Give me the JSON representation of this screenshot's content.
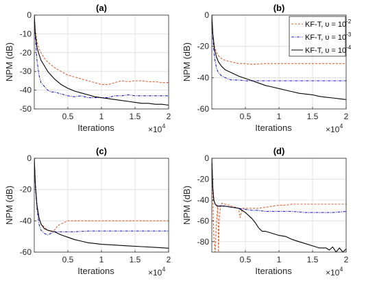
{
  "legend": {
    "entries": [
      {
        "label": "KF-T, υ = 10",
        "exp": "-2"
      },
      {
        "label": "KF-T, υ = 10",
        "exp": "-3"
      },
      {
        "label": "KF-T, υ = 10",
        "exp": "-4"
      }
    ]
  },
  "chart_data": [
    {
      "type": "line",
      "title": "(a)",
      "xlabel": "Iterations",
      "ylabel": "NPM (dB)",
      "x_multiplier": "×10",
      "x_multiplier_exp": "4",
      "xlim": [
        0,
        20000
      ],
      "ylim": [
        -50,
        0
      ],
      "xticks": [
        5000,
        10000,
        15000,
        20000
      ],
      "xtick_labels": [
        "0.5",
        "1",
        "1.5",
        "2"
      ],
      "yticks": [
        -50,
        -40,
        -30,
        -20,
        -10,
        0
      ],
      "ytick_labels": [
        "-50",
        "-40",
        "-30",
        "-20",
        "-10",
        "0"
      ],
      "grid": true,
      "series": [
        {
          "name": "KF-T, υ = 10^-2",
          "color": "#e06030",
          "dash": "3,2",
          "x": [
            0,
            150,
            400,
            700,
            1000,
            1500,
            2000,
            3000,
            4000,
            5000,
            6000,
            7000,
            8000,
            9000,
            10000,
            11000,
            12000,
            13000,
            14000,
            15000,
            16000,
            17000,
            18000,
            19000,
            20000
          ],
          "y": [
            0,
            -8,
            -14,
            -18,
            -20,
            -23,
            -25,
            -28,
            -30,
            -32,
            -33,
            -34,
            -35,
            -36,
            -37,
            -37,
            -36,
            -35,
            -35.5,
            -35,
            -35,
            -35.5,
            -35.5,
            -36,
            -36
          ]
        },
        {
          "name": "KF-T, υ = 10^-3",
          "color": "#2020d0",
          "dash": "4,1.5,1,1.5",
          "x": [
            0,
            150,
            400,
            700,
            1000,
            1500,
            2000,
            2500,
            3000,
            4000,
            5000,
            6000,
            7000,
            8000,
            9000,
            10000,
            11000,
            12000,
            13000,
            14000,
            15000,
            16000,
            17000,
            18000,
            19000,
            20000
          ],
          "y": [
            0,
            -12,
            -24,
            -32,
            -36,
            -38,
            -40,
            -41,
            -41,
            -42,
            -43,
            -43.5,
            -43,
            -44,
            -44,
            -44,
            -44,
            -43,
            -43,
            -42.5,
            -43,
            -43,
            -43,
            -43,
            -43,
            -43
          ]
        },
        {
          "name": "KF-T, υ = 10^-4",
          "color": "#000000",
          "dash": "",
          "x": [
            0,
            150,
            400,
            700,
            1000,
            1500,
            2000,
            3000,
            4000,
            5000,
            6000,
            7000,
            8000,
            9000,
            10000,
            11000,
            12000,
            13000,
            14000,
            15000,
            16000,
            17000,
            18000,
            19000,
            20000
          ],
          "y": [
            0,
            -10,
            -17,
            -21,
            -24,
            -27,
            -30,
            -34,
            -37,
            -39,
            -40.5,
            -41.5,
            -42.5,
            -43.5,
            -44,
            -44.5,
            -45,
            -45.5,
            -46,
            -46.5,
            -47,
            -47,
            -47.5,
            -47.5,
            -48
          ]
        }
      ]
    },
    {
      "type": "line",
      "title": "(b)",
      "xlabel": "Iterations",
      "ylabel": "NPM (dB)",
      "x_multiplier": "×10",
      "x_multiplier_exp": "4",
      "xlim": [
        0,
        20000
      ],
      "ylim": [
        -60,
        0
      ],
      "xticks": [
        5000,
        10000,
        15000,
        20000
      ],
      "xtick_labels": [
        "0.5",
        "1",
        "1.5",
        "2"
      ],
      "yticks": [
        -60,
        -40,
        -20,
        0
      ],
      "ytick_labels": [
        "-60",
        "-40",
        "-20",
        "0"
      ],
      "grid": true,
      "series": [
        {
          "name": "KF-T, υ = 10^-2",
          "color": "#e06030",
          "dash": "3,2",
          "x": [
            0,
            150,
            400,
            700,
            1000,
            1500,
            2000,
            3000,
            4000,
            5000,
            6000,
            8000,
            10000,
            12000,
            14000,
            16000,
            18000,
            20000
          ],
          "y": [
            0,
            -12,
            -20,
            -24,
            -26,
            -28,
            -29,
            -30,
            -31,
            -31,
            -31.5,
            -31,
            -31,
            -31,
            -31,
            -31,
            -31,
            -31
          ]
        },
        {
          "name": "KF-T, υ = 10^-3",
          "color": "#2020d0",
          "dash": "4,1.5,1,1.5",
          "x": [
            0,
            150,
            400,
            700,
            1000,
            1500,
            2000,
            2500,
            3000,
            4000,
            5000,
            6000,
            8000,
            10000,
            12000,
            14000,
            16000,
            18000,
            20000
          ],
          "y": [
            0,
            -15,
            -27,
            -34,
            -37,
            -39,
            -40,
            -41,
            -41.5,
            -41.5,
            -42,
            -42,
            -42,
            -42,
            -42,
            -42,
            -42,
            -42,
            -42
          ]
        },
        {
          "name": "KF-T, υ = 10^-4",
          "color": "#000000",
          "dash": "",
          "x": [
            0,
            150,
            400,
            700,
            1000,
            1500,
            2000,
            3000,
            4000,
            5000,
            6000,
            7000,
            8000,
            9000,
            10000,
            11000,
            12000,
            13000,
            14000,
            15000,
            16000,
            17000,
            18000,
            19000,
            20000
          ],
          "y": [
            0,
            -12,
            -22,
            -27,
            -30,
            -33,
            -35,
            -37,
            -39,
            -40.5,
            -42,
            -43.5,
            -45,
            -46,
            -47,
            -48,
            -49,
            -50,
            -50.5,
            -51,
            -52,
            -52.5,
            -53,
            -53.5,
            -54
          ]
        }
      ]
    },
    {
      "type": "line",
      "title": "(c)",
      "xlabel": "Iterations",
      "ylabel": "NPM (dB)",
      "x_multiplier": "×10",
      "x_multiplier_exp": "4",
      "xlim": [
        0,
        20000
      ],
      "ylim": [
        -60,
        0
      ],
      "xticks": [
        5000,
        10000,
        15000,
        20000
      ],
      "xtick_labels": [
        "0.5",
        "1",
        "1.5",
        "2"
      ],
      "yticks": [
        -60,
        -40,
        -20,
        0
      ],
      "ytick_labels": [
        "-60",
        "-40",
        "-20",
        "0"
      ],
      "grid": true,
      "series": [
        {
          "name": "KF-T, υ = 10^-2",
          "color": "#e06030",
          "dash": "3,2",
          "x": [
            0,
            150,
            400,
            700,
            1000,
            1500,
            2000,
            2500,
            3000,
            3500,
            4000,
            4500,
            5000,
            6000,
            8000,
            10000,
            12000,
            14000,
            16000,
            18000,
            20000
          ],
          "y": [
            0,
            -15,
            -30,
            -38,
            -42,
            -44,
            -46,
            -47,
            -46,
            -43,
            -42,
            -41,
            -40,
            -40,
            -40,
            -40,
            -40,
            -40,
            -40,
            -40,
            -40
          ]
        },
        {
          "name": "KF-T, υ = 10^-3",
          "color": "#2020d0",
          "dash": "4,1.5,1,1.5",
          "x": [
            0,
            150,
            400,
            700,
            1000,
            1500,
            2000,
            2500,
            3000,
            4000,
            5000,
            6000,
            8000,
            10000,
            12000,
            14000,
            16000,
            18000,
            20000
          ],
          "y": [
            0,
            -18,
            -32,
            -42,
            -46,
            -48,
            -49,
            -48,
            -47,
            -47,
            -47,
            -47,
            -46.5,
            -46.5,
            -46.5,
            -46.5,
            -46.5,
            -46.5,
            -46.5
          ]
        },
        {
          "name": "KF-T, υ = 10^-4",
          "color": "#000000",
          "dash": "",
          "x": [
            0,
            150,
            400,
            700,
            1000,
            1500,
            2000,
            3000,
            4000,
            5000,
            6000,
            7000,
            8000,
            9000,
            10000,
            12000,
            14000,
            16000,
            18000,
            20000
          ],
          "y": [
            0,
            -16,
            -30,
            -38,
            -42,
            -45,
            -46,
            -47,
            -49,
            -50.5,
            -52,
            -53,
            -54,
            -54.5,
            -55,
            -55.5,
            -56,
            -56.5,
            -57,
            -57.5
          ]
        }
      ]
    },
    {
      "type": "line",
      "title": "(d)",
      "xlabel": "Iterations",
      "ylabel": "NPM (dB)",
      "x_multiplier": "×10",
      "x_multiplier_exp": "4",
      "xlim": [
        0,
        20000
      ],
      "ylim": [
        -90,
        0
      ],
      "xticks": [
        5000,
        10000,
        15000,
        20000
      ],
      "xtick_labels": [
        "0.5",
        "1",
        "1.5",
        "2"
      ],
      "yticks": [
        -80,
        -60,
        -40,
        -20,
        0
      ],
      "ytick_labels": [
        "-80",
        "-60",
        "-40",
        "-20",
        "0"
      ],
      "grid": true,
      "series": [
        {
          "name": "KF-T, υ = 10^-2",
          "color": "#e06030",
          "dash": "3,2",
          "x": [
            0,
            150,
            300,
            500,
            700,
            900,
            1000,
            1100,
            1300,
            1500,
            2000,
            2500,
            3000,
            3500,
            4000,
            4200,
            4400,
            4600,
            5000,
            6000,
            7000,
            8000,
            9000,
            10000,
            11000,
            12000,
            14000,
            16000,
            18000,
            20000
          ],
          "y": [
            0,
            -40,
            -75,
            -90,
            -60,
            -45,
            -90,
            -60,
            -45,
            -43,
            -44,
            -45,
            -46,
            -47,
            -48,
            -57,
            -52,
            -48,
            -48,
            -48,
            -48,
            -47,
            -46,
            -45,
            -45,
            -44,
            -44,
            -44,
            -44,
            -44
          ]
        },
        {
          "name": "KF-T, υ = 10^-3",
          "color": "#2020d0",
          "dash": "4,1.5,1,1.5",
          "x": [
            0,
            150,
            300,
            500,
            800,
            1000,
            1500,
            2000,
            3000,
            4000,
            5000,
            6000,
            7000,
            8000,
            9000,
            10000,
            12000,
            14000,
            16000,
            18000,
            20000
          ],
          "y": [
            0,
            -30,
            -40,
            -44,
            -45,
            -46,
            -45,
            -46,
            -47,
            -48,
            -49,
            -50,
            -50,
            -51,
            -51,
            -51,
            -51,
            -52,
            -52,
            -52,
            -51
          ]
        },
        {
          "name": "KF-T, υ = 10^-4",
          "color": "#000000",
          "dash": "",
          "x": [
            0,
            150,
            300,
            500,
            800,
            1000,
            1500,
            2000,
            3000,
            4000,
            4500,
            5000,
            5500,
            6000,
            6500,
            7000,
            7500,
            8000,
            9000,
            10000,
            11000,
            12000,
            13000,
            14000,
            15000,
            16000,
            17000,
            17500,
            18000,
            18500,
            19000,
            19500,
            20000
          ],
          "y": [
            0,
            -28,
            -40,
            -44,
            -46,
            -46,
            -46,
            -46,
            -47,
            -48,
            -50,
            -52,
            -55,
            -58,
            -62,
            -67,
            -70,
            -70,
            -72,
            -74,
            -75,
            -78,
            -80,
            -82,
            -84,
            -86,
            -86,
            -88,
            -85,
            -90,
            -86,
            -90,
            -87
          ]
        }
      ]
    }
  ]
}
